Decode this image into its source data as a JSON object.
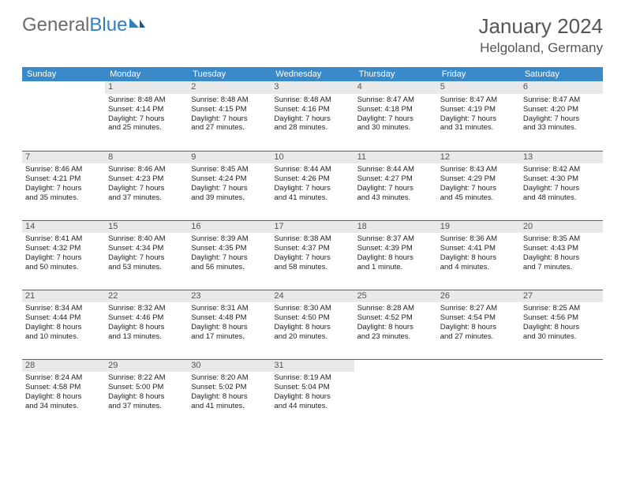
{
  "logo": {
    "text_gray": "General",
    "text_blue": "Blue"
  },
  "title": "January 2024",
  "location": "Helgoland, Germany",
  "colors": {
    "header_bg": "#3a89c9",
    "header_text": "#ffffff",
    "daynum_bg": "#e9e9e9",
    "row_border": "#2d6da8",
    "logo_gray": "#6b6b6b",
    "logo_blue": "#2f7ec0"
  },
  "weekdays": [
    "Sunday",
    "Monday",
    "Tuesday",
    "Wednesday",
    "Thursday",
    "Friday",
    "Saturday"
  ],
  "weeks": [
    [
      null,
      {
        "n": "1",
        "sr": "8:48 AM",
        "ss": "4:14 PM",
        "d1": "Daylight: 7 hours",
        "d2": "and 25 minutes."
      },
      {
        "n": "2",
        "sr": "8:48 AM",
        "ss": "4:15 PM",
        "d1": "Daylight: 7 hours",
        "d2": "and 27 minutes."
      },
      {
        "n": "3",
        "sr": "8:48 AM",
        "ss": "4:16 PM",
        "d1": "Daylight: 7 hours",
        "d2": "and 28 minutes."
      },
      {
        "n": "4",
        "sr": "8:47 AM",
        "ss": "4:18 PM",
        "d1": "Daylight: 7 hours",
        "d2": "and 30 minutes."
      },
      {
        "n": "5",
        "sr": "8:47 AM",
        "ss": "4:19 PM",
        "d1": "Daylight: 7 hours",
        "d2": "and 31 minutes."
      },
      {
        "n": "6",
        "sr": "8:47 AM",
        "ss": "4:20 PM",
        "d1": "Daylight: 7 hours",
        "d2": "and 33 minutes."
      }
    ],
    [
      {
        "n": "7",
        "sr": "8:46 AM",
        "ss": "4:21 PM",
        "d1": "Daylight: 7 hours",
        "d2": "and 35 minutes."
      },
      {
        "n": "8",
        "sr": "8:46 AM",
        "ss": "4:23 PM",
        "d1": "Daylight: 7 hours",
        "d2": "and 37 minutes."
      },
      {
        "n": "9",
        "sr": "8:45 AM",
        "ss": "4:24 PM",
        "d1": "Daylight: 7 hours",
        "d2": "and 39 minutes."
      },
      {
        "n": "10",
        "sr": "8:44 AM",
        "ss": "4:26 PM",
        "d1": "Daylight: 7 hours",
        "d2": "and 41 minutes."
      },
      {
        "n": "11",
        "sr": "8:44 AM",
        "ss": "4:27 PM",
        "d1": "Daylight: 7 hours",
        "d2": "and 43 minutes."
      },
      {
        "n": "12",
        "sr": "8:43 AM",
        "ss": "4:29 PM",
        "d1": "Daylight: 7 hours",
        "d2": "and 45 minutes."
      },
      {
        "n": "13",
        "sr": "8:42 AM",
        "ss": "4:30 PM",
        "d1": "Daylight: 7 hours",
        "d2": "and 48 minutes."
      }
    ],
    [
      {
        "n": "14",
        "sr": "8:41 AM",
        "ss": "4:32 PM",
        "d1": "Daylight: 7 hours",
        "d2": "and 50 minutes."
      },
      {
        "n": "15",
        "sr": "8:40 AM",
        "ss": "4:34 PM",
        "d1": "Daylight: 7 hours",
        "d2": "and 53 minutes."
      },
      {
        "n": "16",
        "sr": "8:39 AM",
        "ss": "4:35 PM",
        "d1": "Daylight: 7 hours",
        "d2": "and 56 minutes."
      },
      {
        "n": "17",
        "sr": "8:38 AM",
        "ss": "4:37 PM",
        "d1": "Daylight: 7 hours",
        "d2": "and 58 minutes."
      },
      {
        "n": "18",
        "sr": "8:37 AM",
        "ss": "4:39 PM",
        "d1": "Daylight: 8 hours",
        "d2": "and 1 minute."
      },
      {
        "n": "19",
        "sr": "8:36 AM",
        "ss": "4:41 PM",
        "d1": "Daylight: 8 hours",
        "d2": "and 4 minutes."
      },
      {
        "n": "20",
        "sr": "8:35 AM",
        "ss": "4:43 PM",
        "d1": "Daylight: 8 hours",
        "d2": "and 7 minutes."
      }
    ],
    [
      {
        "n": "21",
        "sr": "8:34 AM",
        "ss": "4:44 PM",
        "d1": "Daylight: 8 hours",
        "d2": "and 10 minutes."
      },
      {
        "n": "22",
        "sr": "8:32 AM",
        "ss": "4:46 PM",
        "d1": "Daylight: 8 hours",
        "d2": "and 13 minutes."
      },
      {
        "n": "23",
        "sr": "8:31 AM",
        "ss": "4:48 PM",
        "d1": "Daylight: 8 hours",
        "d2": "and 17 minutes."
      },
      {
        "n": "24",
        "sr": "8:30 AM",
        "ss": "4:50 PM",
        "d1": "Daylight: 8 hours",
        "d2": "and 20 minutes."
      },
      {
        "n": "25",
        "sr": "8:28 AM",
        "ss": "4:52 PM",
        "d1": "Daylight: 8 hours",
        "d2": "and 23 minutes."
      },
      {
        "n": "26",
        "sr": "8:27 AM",
        "ss": "4:54 PM",
        "d1": "Daylight: 8 hours",
        "d2": "and 27 minutes."
      },
      {
        "n": "27",
        "sr": "8:25 AM",
        "ss": "4:56 PM",
        "d1": "Daylight: 8 hours",
        "d2": "and 30 minutes."
      }
    ],
    [
      {
        "n": "28",
        "sr": "8:24 AM",
        "ss": "4:58 PM",
        "d1": "Daylight: 8 hours",
        "d2": "and 34 minutes."
      },
      {
        "n": "29",
        "sr": "8:22 AM",
        "ss": "5:00 PM",
        "d1": "Daylight: 8 hours",
        "d2": "and 37 minutes."
      },
      {
        "n": "30",
        "sr": "8:20 AM",
        "ss": "5:02 PM",
        "d1": "Daylight: 8 hours",
        "d2": "and 41 minutes."
      },
      {
        "n": "31",
        "sr": "8:19 AM",
        "ss": "5:04 PM",
        "d1": "Daylight: 8 hours",
        "d2": "and 44 minutes."
      },
      null,
      null,
      null
    ]
  ]
}
